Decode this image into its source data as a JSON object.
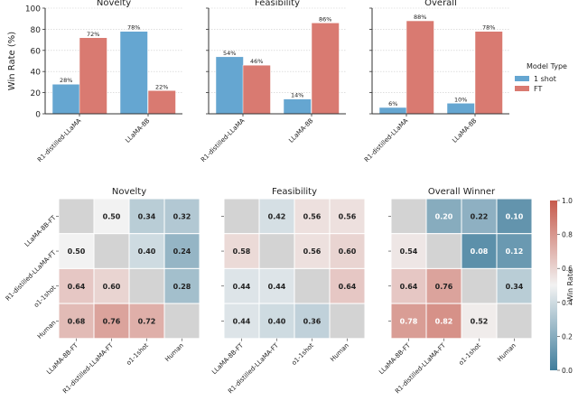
{
  "chart_data": [
    {
      "type": "bar",
      "ylabel": "Win Rate (%)",
      "ylim": [
        0,
        100
      ],
      "yticks": [
        0,
        20,
        40,
        60,
        80,
        100
      ],
      "grid": true,
      "legend": {
        "title": "Model Type",
        "placement": "right",
        "entries": [
          "1 shot",
          "FT"
        ]
      },
      "series_colors": {
        "1 shot": "#65a6d1",
        "FT": "#d97a71"
      },
      "panels": [
        {
          "title": "Novelty",
          "categories": [
            "R1-distilled-LLaMA",
            "LLaMA-8B"
          ],
          "series": [
            {
              "name": "1 shot",
              "values": [
                28,
                78
              ]
            },
            {
              "name": "FT",
              "values": [
                72,
                22
              ]
            }
          ]
        },
        {
          "title": "Feasibility",
          "categories": [
            "R1-distilled-LLaMA",
            "LLaMA-8B"
          ],
          "series": [
            {
              "name": "1 shot",
              "values": [
                54,
                14
              ]
            },
            {
              "name": "FT",
              "values": [
                46,
                86
              ]
            }
          ]
        },
        {
          "title": "Overall",
          "categories": [
            "R1-distilled-LLaMA",
            "LLaMA-8B"
          ],
          "series": [
            {
              "name": "1 shot",
              "values": [
                6,
                10
              ]
            },
            {
              "name": "FT",
              "values": [
                88,
                78
              ]
            }
          ]
        }
      ]
    },
    {
      "type": "heatmap",
      "rows": [
        "LLaMA-8B-FT",
        "R1-distilled-LLaMA-FT",
        "o1-1shot",
        "Human"
      ],
      "cols": [
        "LLaMA-8B-FT",
        "R1-distilled-LLaMA-FT",
        "o1-1shot",
        "Human"
      ],
      "colorbar": {
        "label": "Win Rate",
        "range": [
          0.0,
          1.0
        ],
        "ticks": [
          "0.0",
          "0.2",
          "0.4",
          "0.6",
          "0.8",
          "1.0"
        ],
        "colors": {
          "low": "#3f7d9c",
          "mid": "#f2f2f2",
          "high": "#c65a4c"
        }
      },
      "diagonal_color": "#d3d3d3",
      "panels": [
        {
          "title": "Novelty",
          "values": [
            [
              null,
              0.5,
              0.34,
              0.32
            ],
            [
              0.5,
              null,
              0.4,
              0.24
            ],
            [
              0.64,
              0.6,
              null,
              0.28
            ],
            [
              0.68,
              0.76,
              0.72,
              null
            ]
          ]
        },
        {
          "title": "Feasibility",
          "values": [
            [
              null,
              0.42,
              0.56,
              0.56
            ],
            [
              0.58,
              null,
              0.56,
              0.6
            ],
            [
              0.44,
              0.44,
              null,
              0.64
            ],
            [
              0.44,
              0.4,
              0.36,
              null
            ]
          ]
        },
        {
          "title": "Overall Winner",
          "values": [
            [
              null,
              0.2,
              0.22,
              0.1
            ],
            [
              0.54,
              null,
              0.08,
              0.12
            ],
            [
              0.64,
              0.76,
              null,
              0.34
            ],
            [
              0.78,
              0.82,
              0.52,
              null
            ]
          ]
        }
      ]
    }
  ]
}
